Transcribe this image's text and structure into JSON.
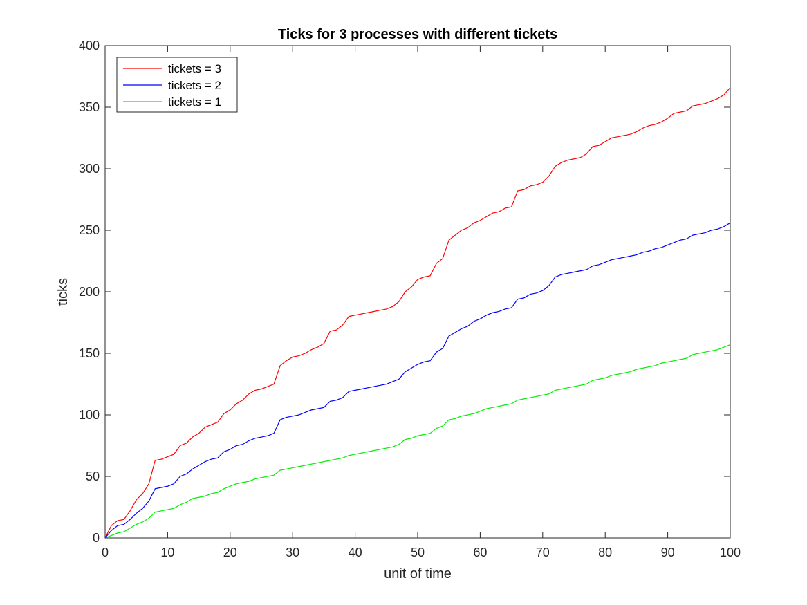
{
  "chart_data": {
    "type": "line",
    "title": "Ticks for 3 processes with different tickets",
    "xlabel": "unit of time",
    "ylabel": "ticks",
    "xlim": [
      0,
      100
    ],
    "ylim": [
      0,
      400
    ],
    "xticks": [
      0,
      10,
      20,
      30,
      40,
      50,
      60,
      70,
      80,
      90,
      100
    ],
    "yticks": [
      0,
      50,
      100,
      150,
      200,
      250,
      300,
      350,
      400
    ],
    "grid": false,
    "legend_position": "top-left",
    "x": [
      0,
      1,
      2,
      3,
      4,
      5,
      6,
      7,
      8,
      9,
      10,
      11,
      12,
      13,
      14,
      15,
      16,
      17,
      18,
      19,
      20,
      21,
      22,
      23,
      24,
      25,
      26,
      27,
      28,
      29,
      30,
      31,
      32,
      33,
      34,
      35,
      36,
      37,
      38,
      39,
      40,
      41,
      42,
      43,
      44,
      45,
      46,
      47,
      48,
      49,
      50,
      51,
      52,
      53,
      54,
      55,
      56,
      57,
      58,
      59,
      60,
      61,
      62,
      63,
      64,
      65,
      66,
      67,
      68,
      69,
      70,
      71,
      72,
      73,
      74,
      75,
      76,
      77,
      78,
      79,
      80,
      81,
      82,
      83,
      84,
      85,
      86,
      87,
      88,
      89,
      90,
      91,
      92,
      93,
      94,
      95,
      96,
      97,
      98,
      99,
      100
    ],
    "series": [
      {
        "name": "tickets = 3",
        "color": "#ff0000",
        "values": [
          0,
          10,
          14,
          15,
          22,
          31,
          36,
          44,
          63,
          64,
          66,
          68,
          75,
          77,
          82,
          85,
          90,
          92,
          94,
          101,
          104,
          109,
          112,
          117,
          120,
          121,
          123,
          125,
          140,
          144,
          147,
          148,
          150,
          153,
          155,
          158,
          168,
          169,
          173,
          180,
          181,
          182,
          183,
          184,
          185,
          186,
          188,
          192,
          200,
          204,
          210,
          212,
          213,
          223,
          227,
          242,
          246,
          250,
          252,
          256,
          258,
          261,
          264,
          265,
          268,
          269,
          282,
          283,
          286,
          287,
          289,
          294,
          302,
          305,
          307,
          308,
          309,
          312,
          318,
          319,
          322,
          325,
          326,
          327,
          328,
          330,
          333,
          335,
          336,
          338,
          341,
          345,
          346,
          347,
          351,
          352,
          353,
          355,
          357,
          360,
          366
        ]
      },
      {
        "name": "tickets = 2",
        "color": "#0000ff",
        "values": [
          0,
          6,
          10,
          11,
          15,
          20,
          24,
          30,
          40,
          41,
          42,
          44,
          50,
          52,
          56,
          59,
          62,
          64,
          65,
          70,
          72,
          75,
          76,
          79,
          81,
          82,
          83,
          85,
          96,
          98,
          99,
          100,
          102,
          104,
          105,
          106,
          111,
          112,
          114,
          119,
          120,
          121,
          122,
          123,
          124,
          125,
          127,
          129,
          135,
          138,
          141,
          143,
          144,
          151,
          154,
          164,
          167,
          170,
          172,
          176,
          178,
          181,
          183,
          184,
          186,
          187,
          194,
          195,
          198,
          199,
          201,
          205,
          212,
          214,
          215,
          216,
          217,
          218,
          221,
          222,
          224,
          226,
          227,
          228,
          229,
          230,
          232,
          233,
          235,
          236,
          238,
          240,
          242,
          243,
          246,
          247,
          248,
          250,
          251,
          253,
          256
        ]
      },
      {
        "name": "tickets = 1",
        "color": "#00ee00",
        "values": [
          0,
          2,
          4,
          5,
          8,
          11,
          13,
          16,
          21,
          22,
          23,
          24,
          27,
          29,
          32,
          33,
          34,
          36,
          37,
          40,
          42,
          44,
          45,
          46,
          48,
          49,
          50,
          51,
          55,
          56,
          57,
          58,
          59,
          60,
          61,
          62,
          63,
          64,
          65,
          67,
          68,
          69,
          70,
          71,
          72,
          73,
          74,
          76,
          80,
          81,
          83,
          84,
          85,
          89,
          91,
          96,
          97,
          99,
          100,
          101,
          103,
          105,
          106,
          107,
          108,
          109,
          112,
          113,
          114,
          115,
          116,
          117,
          120,
          121,
          122,
          123,
          124,
          125,
          128,
          129,
          130,
          132,
          133,
          134,
          135,
          137,
          138,
          139,
          140,
          142,
          143,
          144,
          145,
          146,
          149,
          150,
          151,
          152,
          153,
          155,
          157
        ]
      }
    ]
  }
}
